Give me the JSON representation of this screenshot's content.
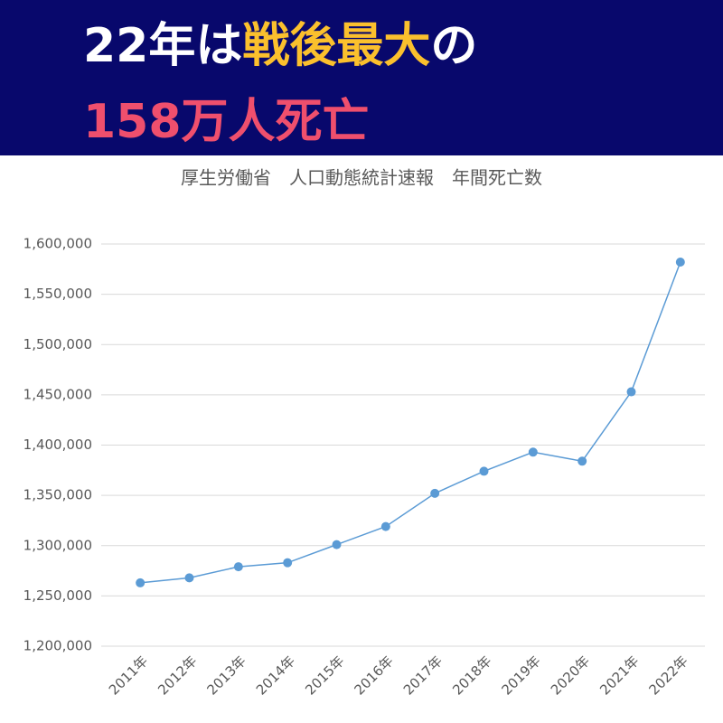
{
  "banner": {
    "line1": [
      "22年は",
      "戦後最大",
      "の"
    ],
    "line2": "158万人死亡"
  },
  "chart_data": {
    "type": "line",
    "title": "厚生労働省　人口動態統計速報　年間死亡数",
    "categories": [
      "2011年",
      "2012年",
      "2013年",
      "2014年",
      "2015年",
      "2016年",
      "2017年",
      "2018年",
      "2019年",
      "2020年",
      "2021年",
      "2022年"
    ],
    "series": [
      {
        "name": "年間死亡数",
        "color": "#5b9bd5",
        "values": [
          1263000,
          1268000,
          1279000,
          1283000,
          1301000,
          1319000,
          1352000,
          1374000,
          1393000,
          1384000,
          1453000,
          1582000
        ]
      }
    ],
    "ylim": [
      1200000,
      1600000
    ],
    "yticks": [
      {
        "value": 1200000,
        "label": "1,200,000"
      },
      {
        "value": 1250000,
        "label": "1,250,000"
      },
      {
        "value": 1300000,
        "label": "1,300,000"
      },
      {
        "value": 1350000,
        "label": "1,350,000"
      },
      {
        "value": 1400000,
        "label": "1,400,000"
      },
      {
        "value": 1450000,
        "label": "1,450,000"
      },
      {
        "value": 1500000,
        "label": "1,500,000"
      },
      {
        "value": 1550000,
        "label": "1,550,000"
      },
      {
        "value": 1600000,
        "label": "1,600,000"
      }
    ],
    "grid": true,
    "legend": false
  }
}
